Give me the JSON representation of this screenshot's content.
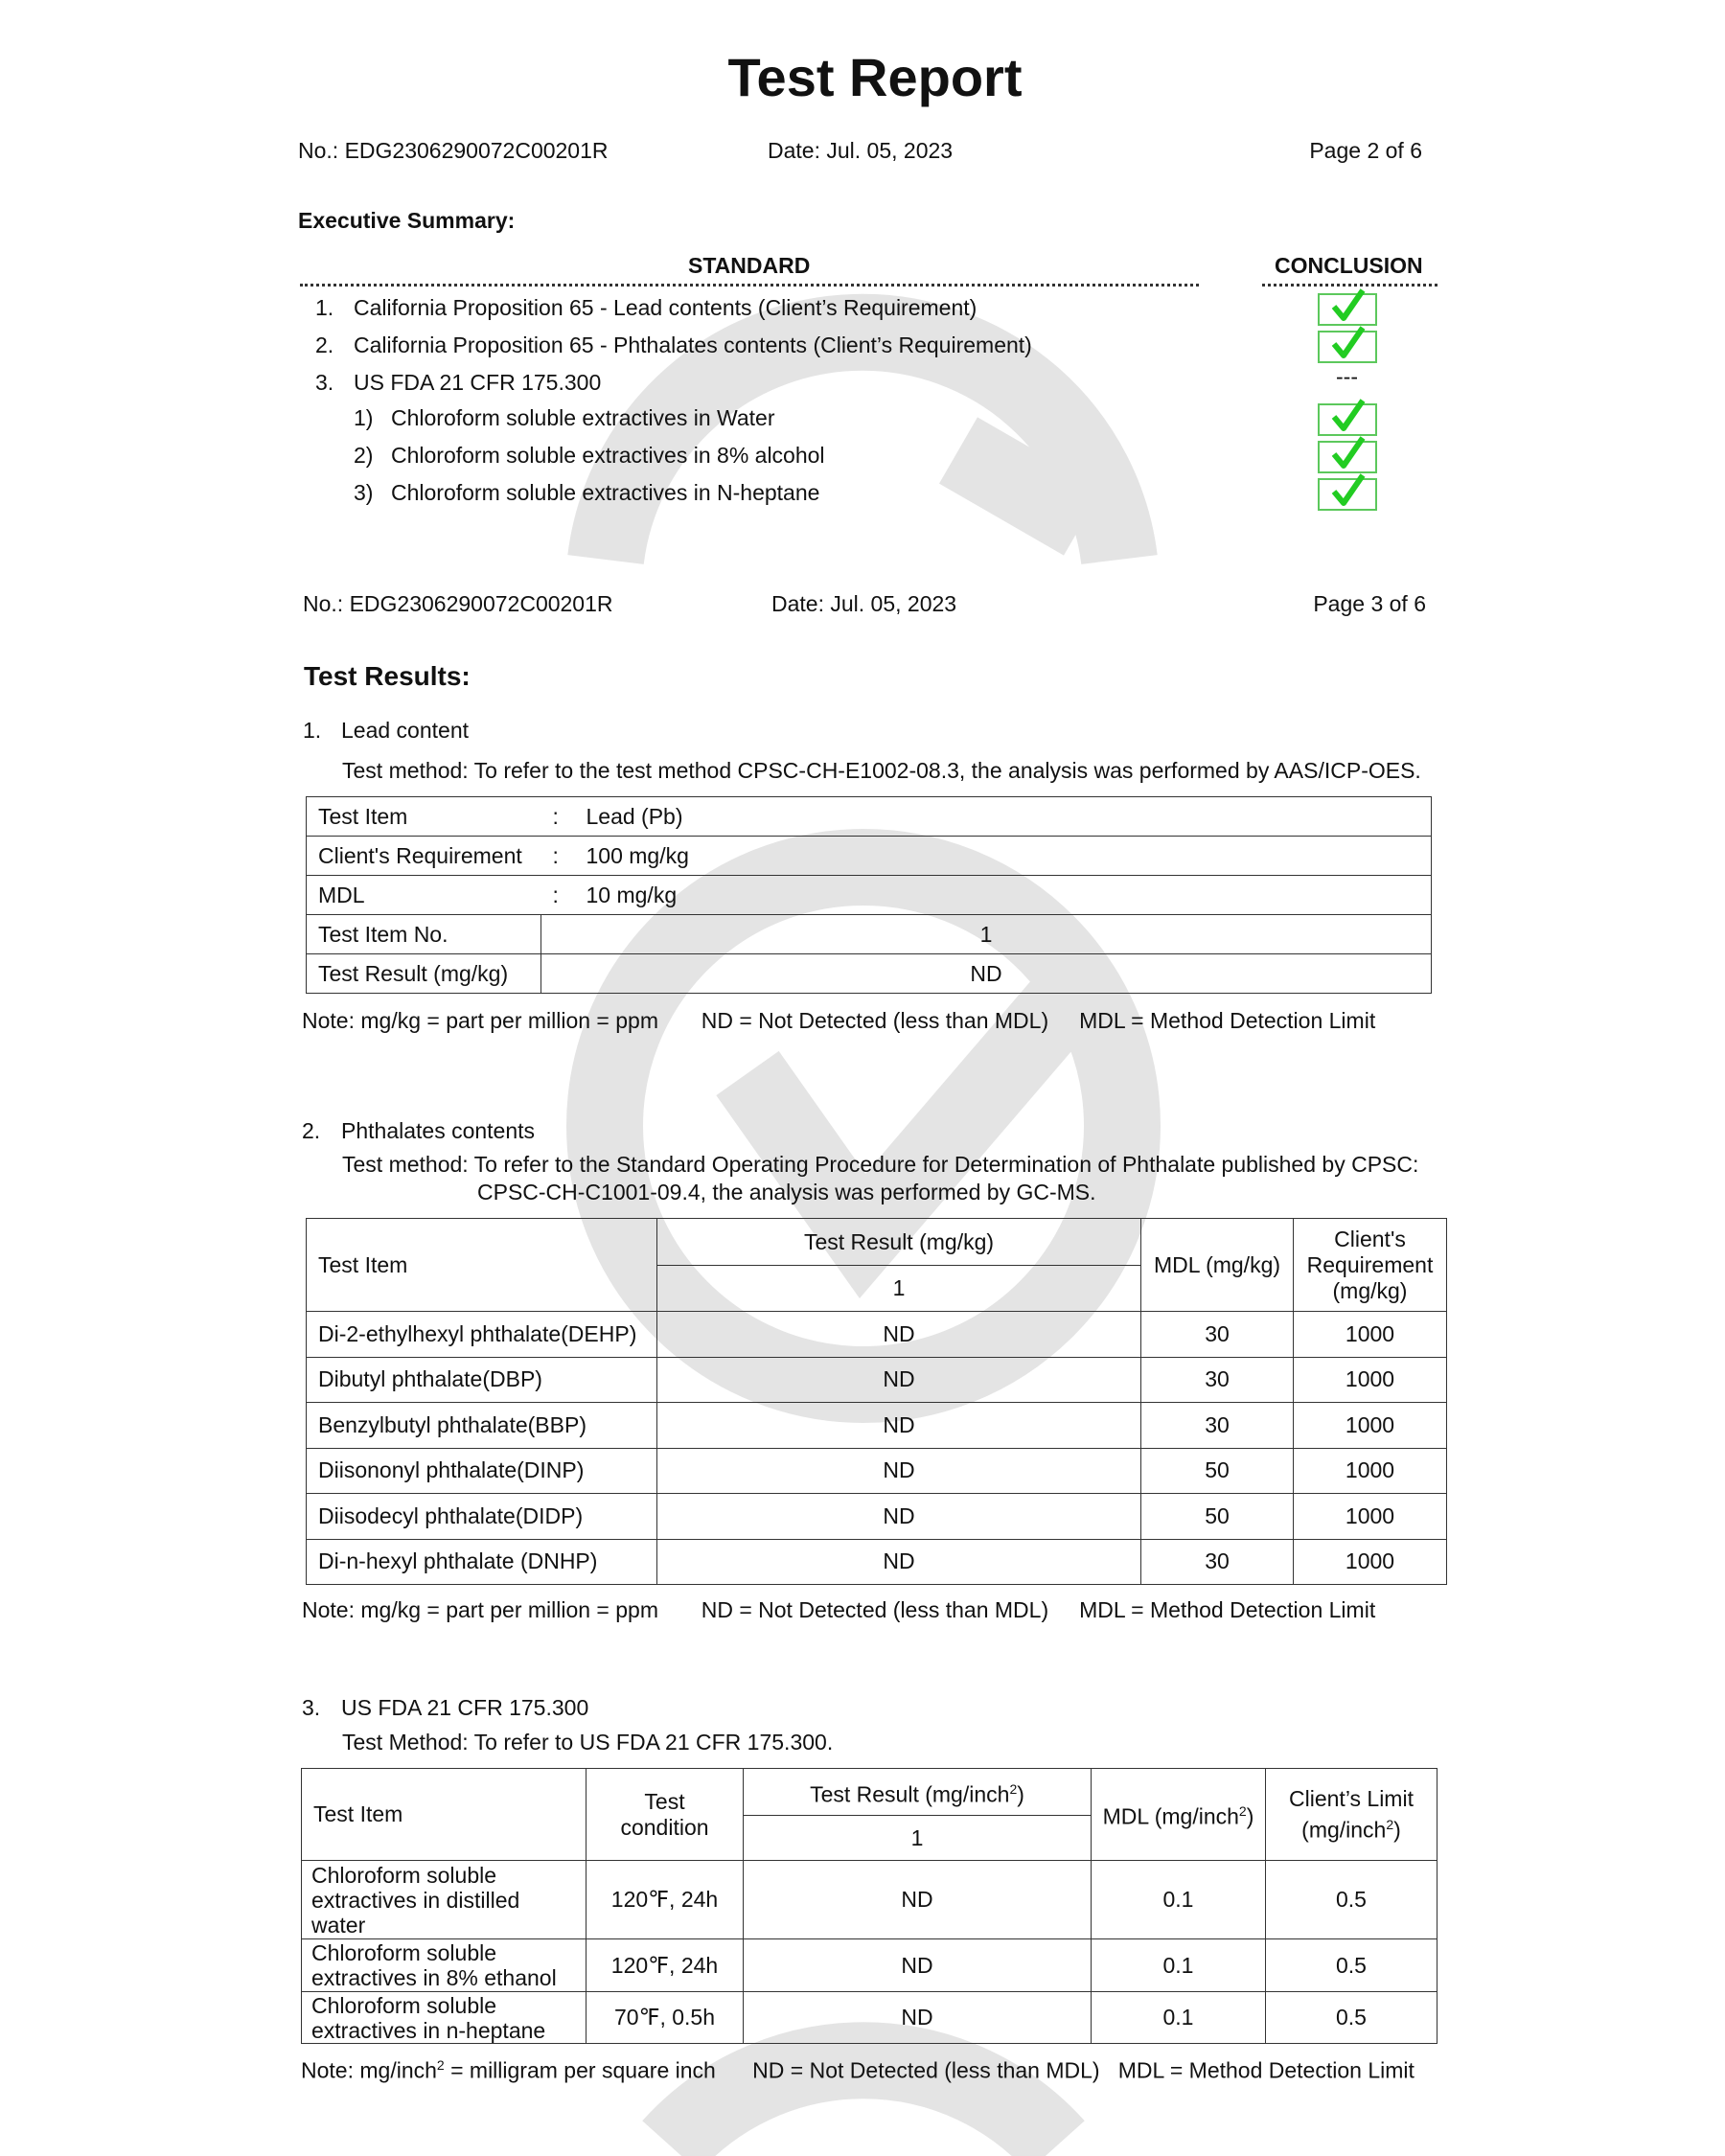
{
  "title": "Test Report",
  "page2": {
    "no": "No.: EDG2306290072C00201R",
    "date": "Date: Jul. 05, 2023",
    "page": "Page 2 of 6"
  },
  "summary": {
    "heading": "Executive Summary:",
    "standard_header": "STANDARD",
    "conclusion_header": "CONCLUSION",
    "items": [
      {
        "num": "1.",
        "text": "California Proposition 65 - Lead contents (Client’s Requirement)",
        "conclusion": "pass"
      },
      {
        "num": "2.",
        "text": "California Proposition 65 - Phthalates contents (Client’s Requirement)",
        "conclusion": "pass"
      },
      {
        "num": "3.",
        "text": "US FDA 21 CFR 175.300",
        "conclusion": "---"
      },
      {
        "num": "1)",
        "text": "Chloroform soluble extractives in Water",
        "conclusion": "pass"
      },
      {
        "num": "2)",
        "text": "Chloroform soluble extractives in 8% alcohol",
        "conclusion": "pass"
      },
      {
        "num": "3)",
        "text": "Chloroform soluble extractives in N-heptane",
        "conclusion": "pass"
      }
    ],
    "check_icon": "checkmark-icon",
    "check_color": "#22cc22"
  },
  "page3": {
    "no": "No.: EDG2306290072C00201R",
    "date": "Date: Jul. 05, 2023",
    "page": "Page 3 of 6"
  },
  "results_heading": "Test Results:",
  "lead": {
    "num": "1.",
    "title": "Lead content",
    "method": "Test method: To refer to the test method CPSC-CH-E1002-08.3, the analysis was performed by AAS/ICP-OES.",
    "rows": [
      {
        "label": "Test Item",
        "sep": ":",
        "value": "Lead (Pb)"
      },
      {
        "label": "Client's Requirement",
        "sep": ":",
        "value": "100 mg/kg"
      },
      {
        "label": "MDL",
        "sep": ":",
        "value": "10 mg/kg"
      },
      {
        "label": "Test Item No.",
        "value": "1"
      },
      {
        "label": "Test Result (mg/kg)",
        "value": "ND"
      }
    ],
    "note": "Note: mg/kg = part per million = ppm       ND = Not Detected (less than MDL)     MDL = Method Detection Limit"
  },
  "phth": {
    "num": "2.",
    "title": "Phthalates contents",
    "method1": "Test method: To refer to the Standard Operating Procedure for Determination of Phthalate published by CPSC:",
    "method2": "CPSC-CH-C1001-09.4, the analysis was performed by GC-MS.",
    "headers": {
      "item": "Test Item",
      "result": "Test Result (mg/kg)",
      "sample": "1",
      "mdl": "MDL (mg/kg)",
      "req1": "Client's",
      "req2": "Requirement",
      "req3": "(mg/kg)"
    },
    "rows": [
      [
        "Di-2-ethylhexyl phthalate(DEHP)",
        "ND",
        "30",
        "1000"
      ],
      [
        "Dibutyl phthalate(DBP)",
        "ND",
        "30",
        "1000"
      ],
      [
        "Benzylbutyl phthalate(BBP)",
        "ND",
        "30",
        "1000"
      ],
      [
        "Diisononyl phthalate(DINP)",
        "ND",
        "50",
        "1000"
      ],
      [
        "Diisodecyl phthalate(DIDP)",
        "ND",
        "50",
        "1000"
      ],
      [
        "Di-n-hexyl phthalate (DNHP)",
        "ND",
        "30",
        "1000"
      ]
    ],
    "note": "Note: mg/kg = part per million = ppm       ND = Not Detected (less than MDL)     MDL = Method Detection Limit"
  },
  "fda": {
    "num": "3.",
    "title": "US FDA 21 CFR 175.300",
    "method": "Test Method: To refer to US FDA 21 CFR 175.300.",
    "headers": {
      "item": "Test Item",
      "cond1": "Test",
      "cond2": "condition",
      "result": "Test Result (mg/inch",
      "sample": "1",
      "mdl": "MDL (mg/inch",
      "limit1": "Client’s Limit",
      "limit2": "(mg/inch",
      "sup": "2",
      "close": ")"
    },
    "rows": [
      [
        "Chloroform soluble extractives in distilled water",
        "120℉, 24h",
        "ND",
        "0.1",
        "0.5"
      ],
      [
        "Chloroform soluble extractives in 8% ethanol",
        "120℉, 24h",
        "ND",
        "0.1",
        "0.5"
      ],
      [
        "Chloroform soluble extractives in n-heptane",
        "70℉, 0.5h",
        "ND",
        "0.1",
        "0.5"
      ]
    ],
    "note1": "Note: mg/inch",
    "note_sup": "2",
    "note2": " = milligram per square inch      ND = Not Detected (less than MDL)   MDL = Method Detection Limit"
  }
}
